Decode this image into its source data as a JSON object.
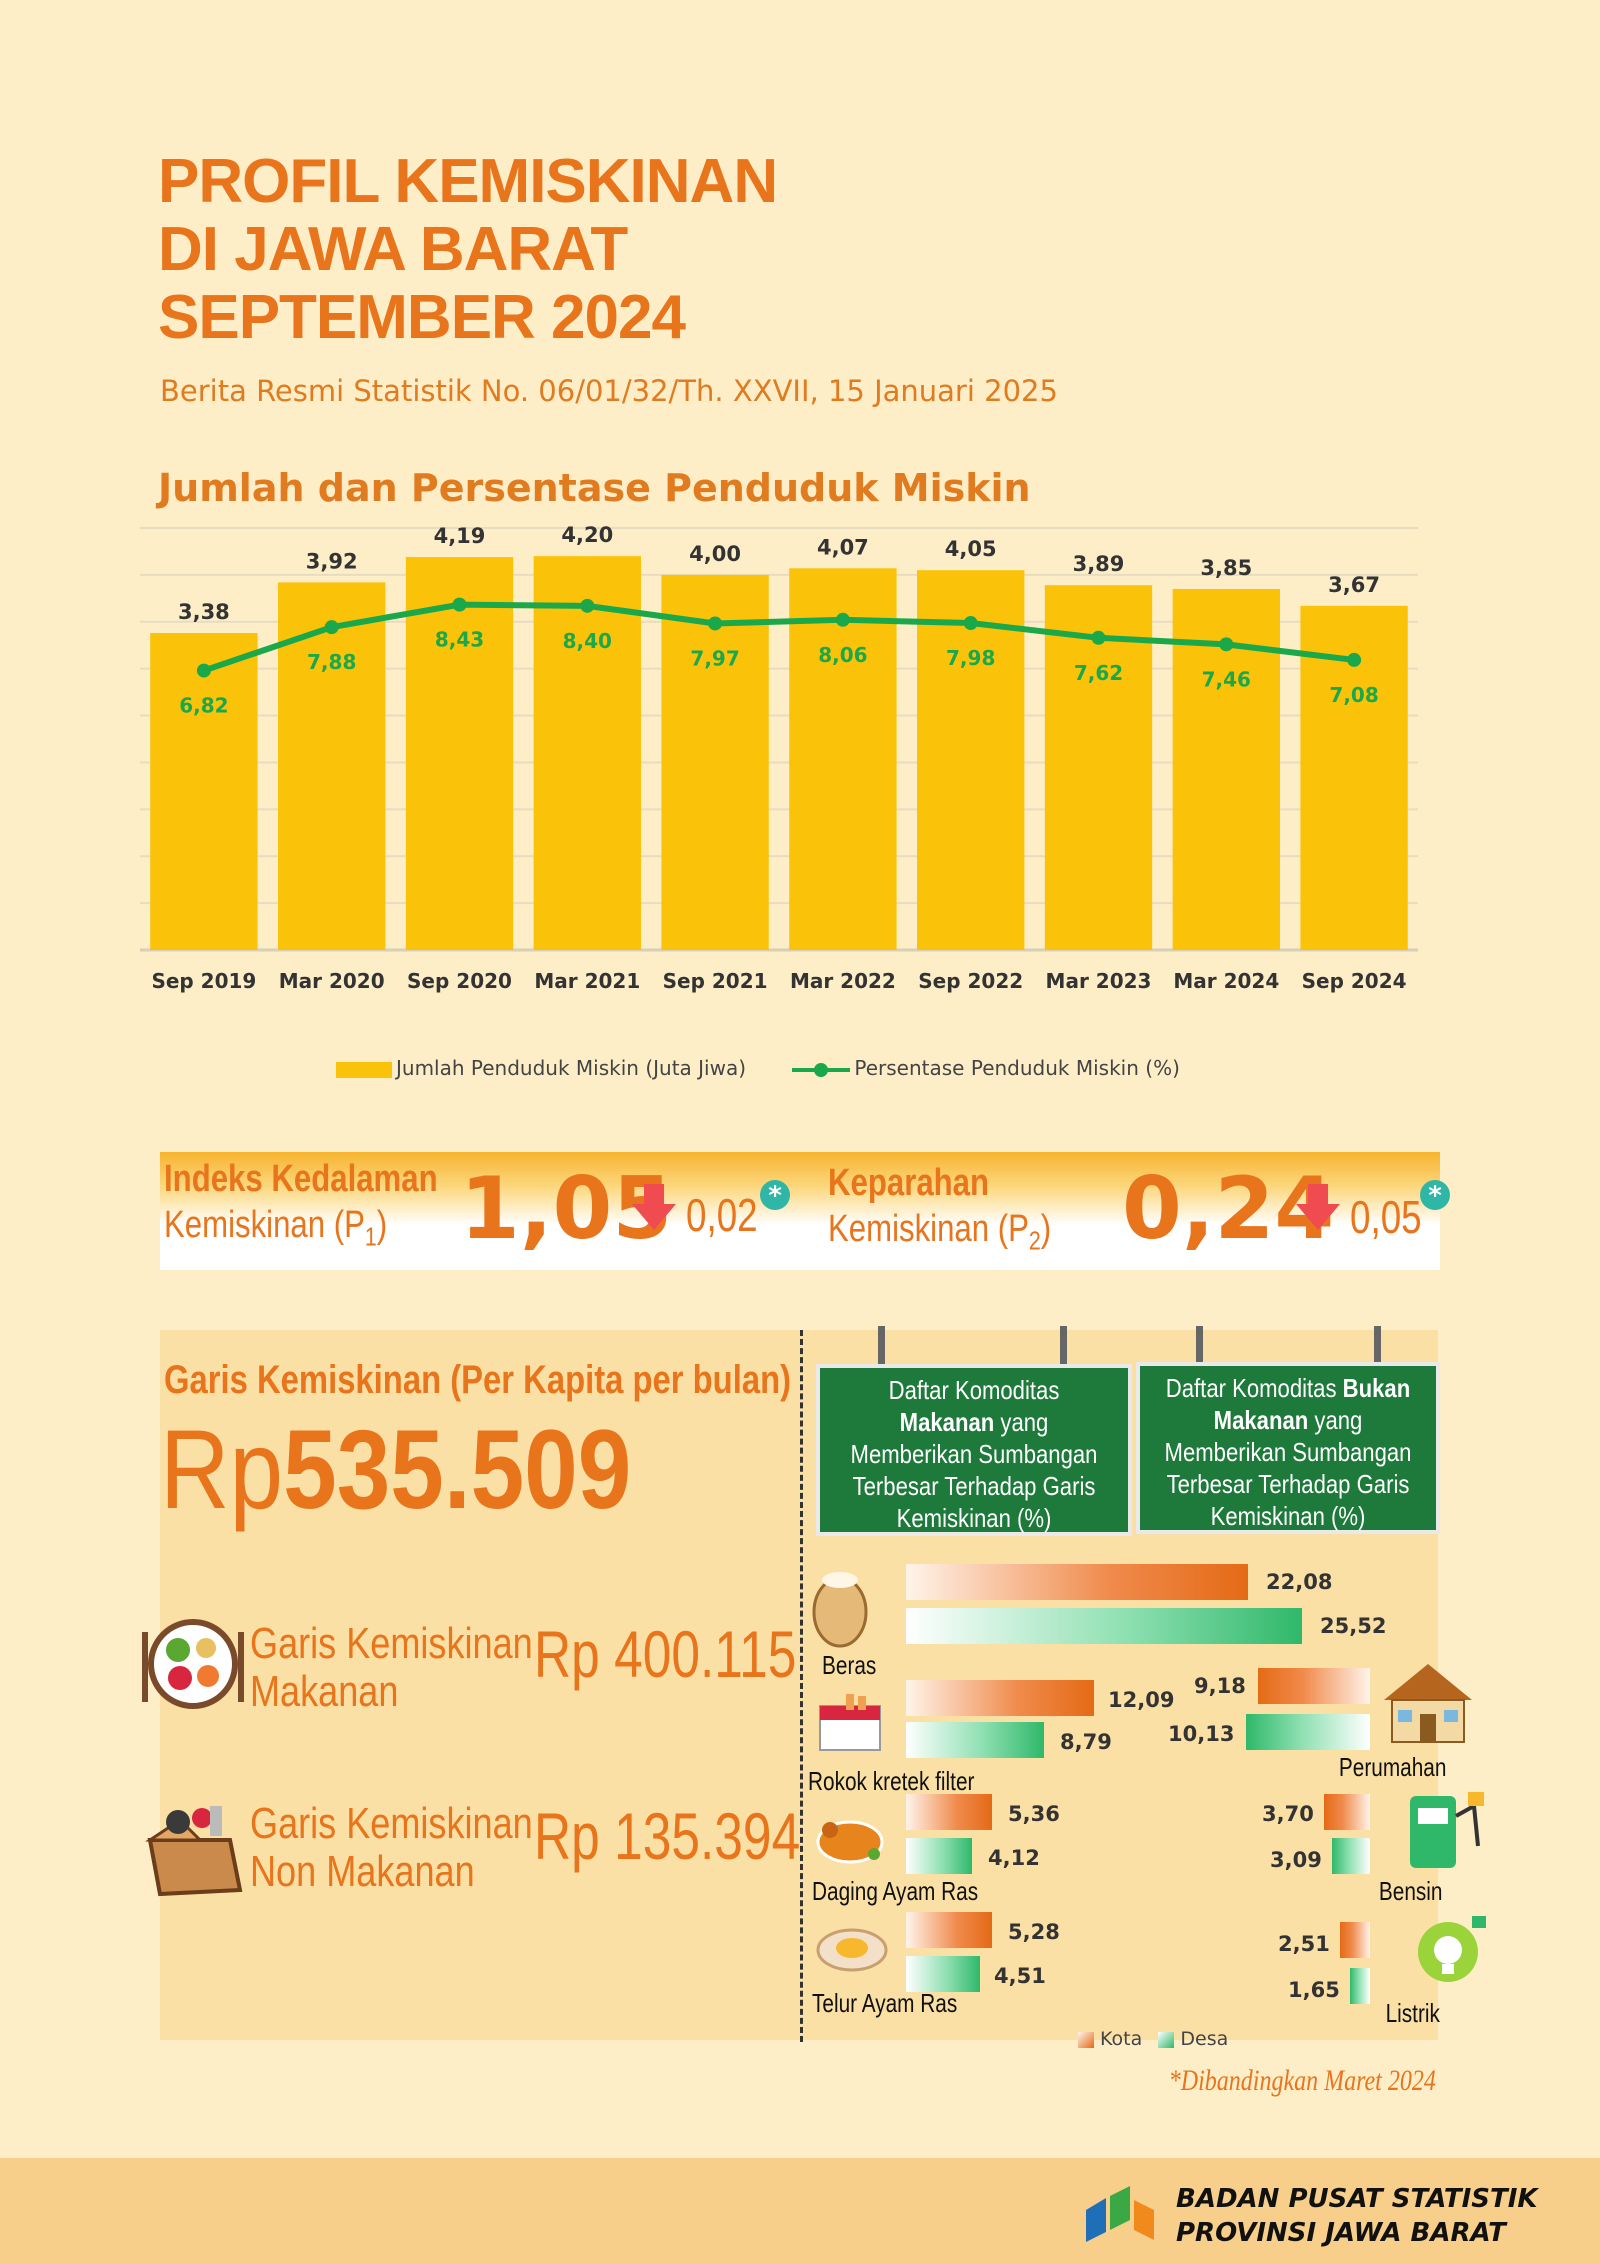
{
  "header": {
    "title_lines": [
      "PROFIL KEMISKINAN",
      "DI JAWA BARAT",
      "SEPTEMBER 2024"
    ],
    "subtitle": "Berita  Resmi Statistik No. 06/01/32/Th. XXVII, 15 Januari 2025"
  },
  "chart_data": [
    {
      "type": "bar",
      "title": "Jumlah dan Persentase Penduduk Miskin",
      "categories": [
        "Sep 2019",
        "Mar 2020",
        "Sep 2020",
        "Mar 2021",
        "Sep 2021",
        "Mar 2022",
        "Sep 2022",
        "Mar 2023",
        "Mar 2024",
        "Sep 2024"
      ],
      "series": [
        {
          "name": "Jumlah Penduduk Miskin (Juta Jiwa)",
          "type": "bar",
          "color": "#fbc20a",
          "values": [
            "3,38",
            "3,92",
            "4,19",
            "4,20",
            "4,00",
            "4,07",
            "4,05",
            "3,89",
            "3,85",
            "3,67"
          ]
        },
        {
          "name": "Persentase Penduduk Miskin (%)",
          "type": "line",
          "color": "#1ba84a",
          "values": [
            "6,82",
            "7,88",
            "8,43",
            "8,40",
            "7,97",
            "8,06",
            "7,98",
            "7,62",
            "7,46",
            "7,08"
          ]
        }
      ],
      "ylim": [
        0,
        4.5
      ],
      "grid": true,
      "legend": "bottom"
    },
    {
      "type": "bar",
      "title": "Daftar Komoditas Makanan yang Memberikan Sumbangan Terbesar Terhadap Garis Kemiskinan (%)",
      "categories": [
        "Beras",
        "Rokok kretek filter",
        "Daging Ayam Ras",
        "Telur Ayam Ras"
      ],
      "series": [
        {
          "name": "Kota",
          "values": [
            "22,08",
            "12,09",
            "5,36",
            "5,28"
          ]
        },
        {
          "name": "Desa",
          "values": [
            "25,52",
            "8,79",
            "4,12",
            "4,51"
          ]
        }
      ]
    },
    {
      "type": "bar",
      "title": "Daftar Komoditas Bukan Makanan yang Memberikan Sumbangan Terbesar Terhadap Garis Kemiskinan (%)",
      "categories": [
        "Perumahan",
        "Bensin",
        "Listrik"
      ],
      "series": [
        {
          "name": "Kota",
          "values": [
            "9,18",
            "3,70",
            "2,51"
          ]
        },
        {
          "name": "Desa",
          "values": [
            "10,13",
            "3,09",
            "1,65"
          ]
        }
      ]
    }
  ],
  "index": {
    "p1_label_1": "Indeks Kedalaman",
    "p1_label_2": "Kemiskinan (P",
    "p1_sub": "1",
    "p1_value": "1,05",
    "p1_change": "0,02",
    "p2_label_1": "Keparahan",
    "p2_label_2": "Kemiskinan (P",
    "p2_sub": "2",
    "p2_value": "0,24",
    "p2_change": "0,05",
    "star": "*",
    "colors": {
      "accent": "#e8741c",
      "down": "#ef4b50",
      "star": "#2fb6a6"
    }
  },
  "garis": {
    "label": "Garis Kemiskinan (Per Kapita per bulan)",
    "currency": "Rp",
    "value": "535.509",
    "makanan_label_1": "Garis Kemiskinan",
    "makanan_label_2": "Makanan",
    "makanan_value": "Rp 400.115",
    "nonmakanan_label_1": "Garis Kemiskinan",
    "nonmakanan_label_2": "Non Makanan",
    "nonmakanan_value": "Rp 135.394"
  },
  "signs": {
    "makanan": [
      "Daftar Komoditas",
      "Makanan yang",
      "Memberikan Sumbangan",
      "Terbesar Terhadap Garis",
      "Kemiskinan (%)"
    ],
    "makanan_bold": "Makanan",
    "makanan_rest": " yang",
    "bukan": [
      "Daftar Komoditas ",
      "Bukan",
      "Makanan",
      " yang",
      "Memberikan Sumbangan",
      "Terbesar Terhadap Garis",
      "Kemiskinan (%)"
    ]
  },
  "legend2": {
    "kota": "Kota",
    "desa": "Desa"
  },
  "note": "*Dibandingkan Maret 2024",
  "footer": {
    "line1": "BADAN PUSAT STATISTIK",
    "line2": "PROVINSI JAWA BARAT"
  }
}
